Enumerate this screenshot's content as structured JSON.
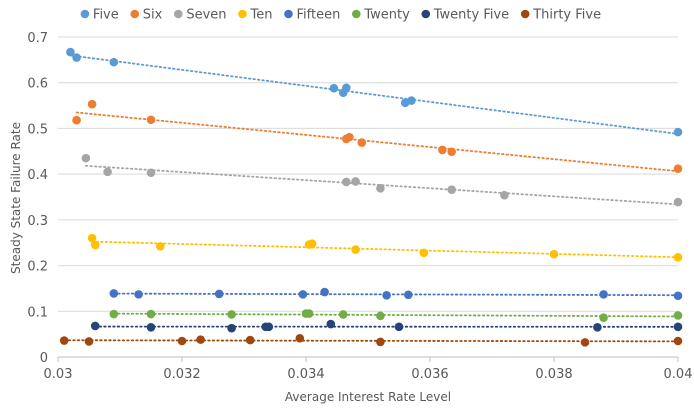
{
  "chart_data": {
    "type": "scatter",
    "title": "",
    "xlabel": "Average Interest Rate Level",
    "ylabel": "Steady State Failure Rate",
    "xlim": [
      0.03,
      0.04
    ],
    "ylim": [
      0,
      0.7
    ],
    "x_ticks": [
      0.03,
      0.032,
      0.034,
      0.036,
      0.038,
      0.04
    ],
    "x_tick_labels": [
      "0.03",
      "0.032",
      "0.034",
      "0.036",
      "0.038",
      "0.04"
    ],
    "y_ticks": [
      0,
      0.1,
      0.2,
      0.3,
      0.4,
      0.5,
      0.6,
      0.7
    ],
    "y_tick_labels": [
      "0",
      "0.1",
      "0.2",
      "0.3",
      "0.4",
      "0.5",
      "0.6",
      "0.7"
    ],
    "grid": "horizontal",
    "legend_position": "top",
    "trendlines": "linear, dotted",
    "series": [
      {
        "name": "Five",
        "color": "#5B9BD5",
        "x": [
          0.0302,
          0.0303,
          0.0309,
          0.03445,
          0.0346,
          0.03465,
          0.0356,
          0.0357,
          0.04
        ],
        "y": [
          0.667,
          0.655,
          0.645,
          0.588,
          0.578,
          0.589,
          0.556,
          0.561,
          0.492
        ]
      },
      {
        "name": "Six",
        "color": "#ED7D31",
        "x": [
          0.0303,
          0.03055,
          0.0315,
          0.03465,
          0.0347,
          0.0349,
          0.0362,
          0.03635,
          0.04
        ],
        "y": [
          0.518,
          0.553,
          0.519,
          0.477,
          0.481,
          0.469,
          0.453,
          0.449,
          0.412
        ]
      },
      {
        "name": "Seven",
        "color": "#A5A5A5",
        "x": [
          0.03045,
          0.0308,
          0.0315,
          0.03465,
          0.0348,
          0.0352,
          0.03635,
          0.0372,
          0.04
        ],
        "y": [
          0.435,
          0.405,
          0.403,
          0.383,
          0.384,
          0.369,
          0.366,
          0.354,
          0.339
        ]
      },
      {
        "name": "Ten",
        "color": "#FFC000",
        "x": [
          0.03055,
          0.0306,
          0.03165,
          0.03405,
          0.0341,
          0.0348,
          0.0359,
          0.038,
          0.04
        ],
        "y": [
          0.26,
          0.245,
          0.242,
          0.246,
          0.248,
          0.235,
          0.228,
          0.225,
          0.218
        ]
      },
      {
        "name": "Fifteen",
        "color": "#4472C4",
        "x": [
          0.0309,
          0.0313,
          0.0326,
          0.03395,
          0.0343,
          0.0353,
          0.03565,
          0.0388,
          0.04
        ],
        "y": [
          0.139,
          0.137,
          0.138,
          0.137,
          0.142,
          0.135,
          0.136,
          0.137,
          0.134
        ]
      },
      {
        "name": "Twenty",
        "color": "#70AD47",
        "x": [
          0.0309,
          0.0315,
          0.0328,
          0.034,
          0.03405,
          0.0346,
          0.0352,
          0.0388,
          0.04
        ],
        "y": [
          0.094,
          0.094,
          0.093,
          0.095,
          0.095,
          0.093,
          0.09,
          0.086,
          0.091
        ]
      },
      {
        "name": "Twenty Five",
        "color": "#264478",
        "x": [
          0.0306,
          0.0315,
          0.0328,
          0.03335,
          0.0334,
          0.0344,
          0.0355,
          0.0387,
          0.04
        ],
        "y": [
          0.068,
          0.065,
          0.063,
          0.066,
          0.066,
          0.072,
          0.066,
          0.065,
          0.066
        ]
      },
      {
        "name": "Thirty Five",
        "color": "#9E480E",
        "x": [
          0.0301,
          0.0305,
          0.032,
          0.0323,
          0.0331,
          0.0339,
          0.0352,
          0.0385,
          0.04
        ],
        "y": [
          0.036,
          0.034,
          0.035,
          0.038,
          0.037,
          0.041,
          0.033,
          0.032,
          0.035
        ]
      }
    ]
  }
}
